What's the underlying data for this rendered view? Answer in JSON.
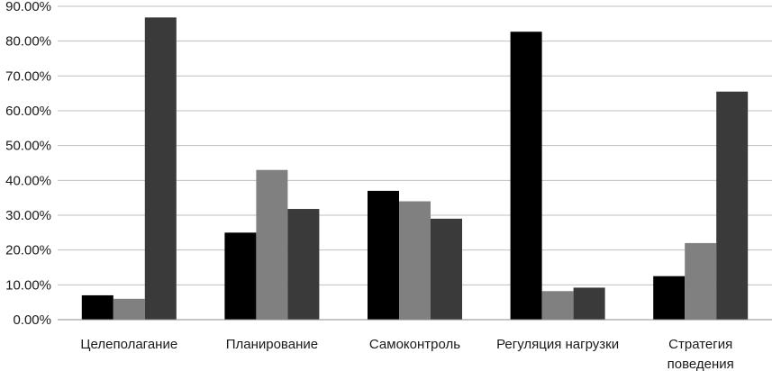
{
  "chart_data": {
    "type": "bar",
    "title": "",
    "xlabel": "",
    "ylabel": "",
    "ylim": [
      0,
      90
    ],
    "y_ticks": [
      "0.00%",
      "10.00%",
      "20.00%",
      "30.00%",
      "40.00%",
      "50.00%",
      "60.00%",
      "70.00%",
      "80.00%",
      "90.00%"
    ],
    "y_tick_values": [
      0,
      10,
      20,
      30,
      40,
      50,
      60,
      70,
      80,
      90
    ],
    "grid": true,
    "legend": "none",
    "categories": [
      [
        "Целеполагание"
      ],
      [
        "Планирование"
      ],
      [
        "Самоконтроль"
      ],
      [
        "Регуляция нагрузки"
      ],
      [
        "Стратегия",
        "поведения"
      ]
    ],
    "series": [
      {
        "color": "#000000",
        "values": [
          7.0,
          25.0,
          37.0,
          82.7,
          12.5
        ]
      },
      {
        "color": "#808080",
        "values": [
          6.0,
          43.0,
          34.0,
          8.2,
          22.0
        ]
      },
      {
        "color": "#3a3a3a",
        "values": [
          86.8,
          31.8,
          29.0,
          9.2,
          65.5
        ]
      }
    ]
  }
}
